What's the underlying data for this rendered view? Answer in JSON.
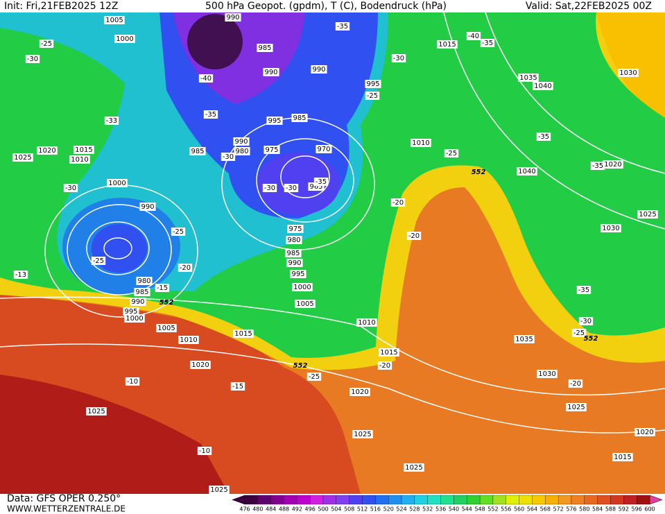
{
  "header": {
    "init": "Init: Fri,21FEB2025 12Z",
    "title": "500 hPa Geopot. (gpdm), T (C), Bodendruck (hPa)",
    "valid": "Valid: Sat,22FEB2025 00Z"
  },
  "footer": {
    "data": "Data: GFS OPER 0.250°",
    "site": "WWW.WETTERZENTRALE.DE"
  },
  "map": {
    "pressure_labels": [
      "1005",
      "1000",
      "990",
      "985",
      "990",
      "990",
      "995",
      "1015",
      "1035",
      "1040",
      "1030",
      "1020",
      "1025",
      "1015",
      "1010",
      "1000",
      "990",
      "985",
      "990",
      "980",
      "975",
      "970",
      "965",
      "995",
      "985",
      "1010",
      "1040",
      "1020",
      "1025",
      "1030",
      "975",
      "980",
      "985",
      "990",
      "995",
      "1000",
      "1005",
      "1010",
      "1015",
      "1010",
      "1005",
      "1000",
      "995",
      "980",
      "985",
      "990",
      "1020",
      "1015",
      "1020",
      "1030",
      "1035",
      "1025",
      "1025",
      "1025",
      "1025",
      "1020",
      "1015",
      "1025"
    ],
    "geopotential_labels": [
      "552",
      "552",
      "552",
      "552"
    ],
    "temperature_labels": [
      "-25",
      "-30",
      "-35",
      "-40",
      "-35",
      "-30",
      "-40",
      "-25",
      "-35",
      "-33",
      "-30",
      "-30",
      "-30",
      "-30",
      "-35",
      "-20",
      "-25",
      "-35",
      "-35",
      "-25",
      "-20",
      "-25",
      "-20",
      "-15",
      "-13",
      "-35",
      "-30",
      "-25",
      "-20",
      "-25",
      "-10",
      "-15",
      "-20",
      "-10"
    ]
  },
  "colorbar": {
    "labels": [
      476,
      480,
      484,
      488,
      492,
      496,
      500,
      504,
      508,
      512,
      516,
      520,
      524,
      528,
      532,
      536,
      540,
      544,
      548,
      552,
      556,
      560,
      564,
      568,
      572,
      576,
      580,
      584,
      588,
      592,
      596,
      600
    ],
    "colors": [
      "#3c0040",
      "#600070",
      "#800090",
      "#a000b0",
      "#c000d0",
      "#d020e0",
      "#a030e8",
      "#8040f0",
      "#5040f0",
      "#3050f0",
      "#2070f0",
      "#2090f0",
      "#20b0f0",
      "#20d0e0",
      "#20e0c0",
      "#20e090",
      "#20d060",
      "#30d030",
      "#60e020",
      "#a0e020",
      "#e0f000",
      "#f0e000",
      "#f8c800",
      "#f8b000",
      "#f09820",
      "#f08020",
      "#e86820",
      "#e05020",
      "#d03820",
      "#c02020",
      "#a01010"
    ],
    "over_color": "#e040a0"
  }
}
